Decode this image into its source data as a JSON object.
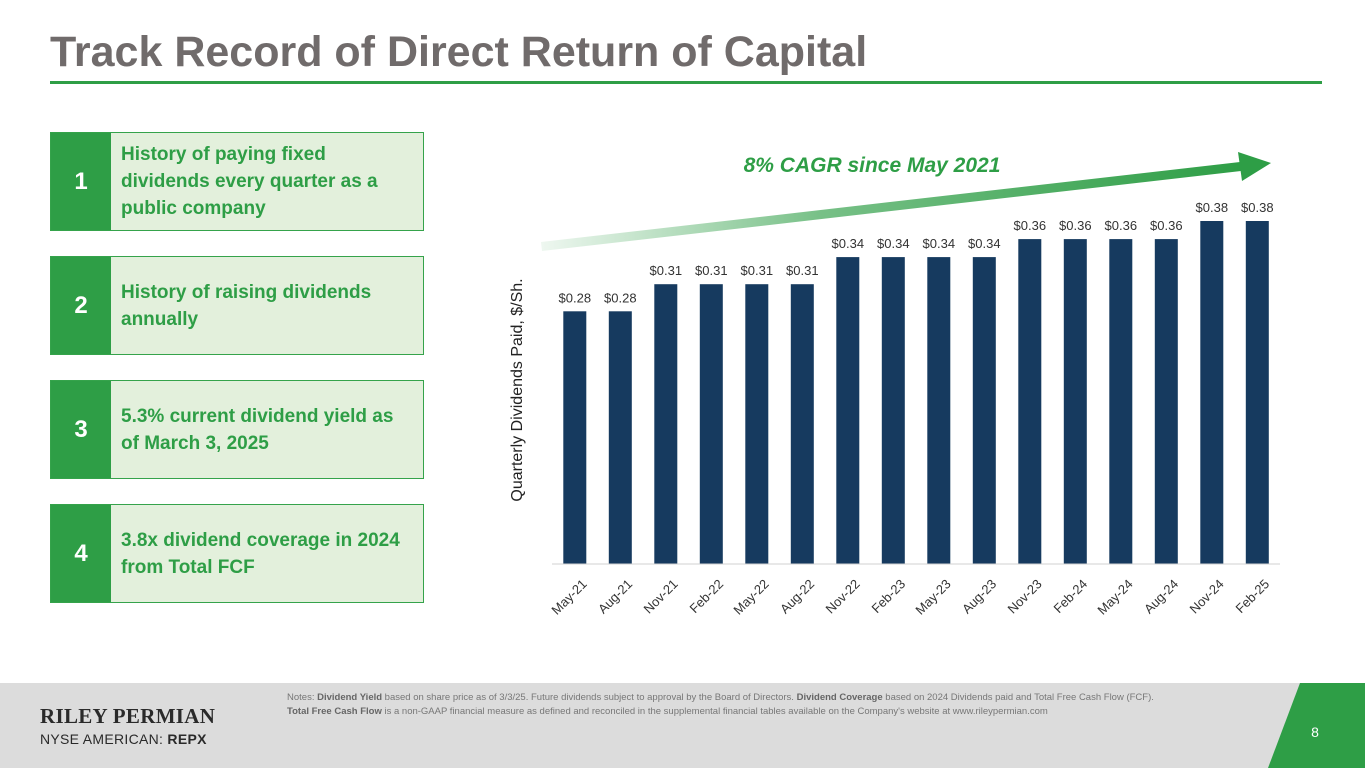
{
  "slide": {
    "title": "Track Record of Direct Return of Capital",
    "page_number": "8"
  },
  "cards": [
    {
      "number": "1",
      "text": "History of paying fixed dividends every quarter as a public company"
    },
    {
      "number": "2",
      "text": "History of raising dividends annually"
    },
    {
      "number": "3",
      "text": "5.3% current dividend yield as of March 3, 2025"
    },
    {
      "number": "4",
      "text": "3.8x dividend coverage in 2024 from Total FCF"
    }
  ],
  "chart_data": {
    "type": "bar",
    "categories": [
      "May-21",
      "Aug-21",
      "Nov-21",
      "Feb-22",
      "May-22",
      "Aug-22",
      "Nov-22",
      "Feb-23",
      "May-23",
      "Aug-23",
      "Nov-23",
      "Feb-24",
      "May-24",
      "Aug-24",
      "Nov-24",
      "Feb-25"
    ],
    "values": [
      0.28,
      0.28,
      0.31,
      0.31,
      0.31,
      0.31,
      0.34,
      0.34,
      0.34,
      0.34,
      0.36,
      0.36,
      0.36,
      0.36,
      0.38,
      0.38
    ],
    "data_labels": [
      "$0.28",
      "$0.28",
      "$0.31",
      "$0.31",
      "$0.31",
      "$0.31",
      "$0.34",
      "$0.34",
      "$0.34",
      "$0.34",
      "$0.36",
      "$0.36",
      "$0.36",
      "$0.36",
      "$0.38",
      "$0.38"
    ],
    "title": "",
    "xlabel": "",
    "ylabel": "Quarterly Dividends Paid, $/Sh.",
    "ylim": [
      0,
      0.38
    ],
    "grid": false,
    "annotation": "8% CAGR since May 2021",
    "bar_color": "#163a5f",
    "arrow_color": "#2e9e46"
  },
  "footer": {
    "company": "RILEY PERMIAN",
    "exchange_prefix": "NYSE AMERICAN: ",
    "ticker": "REPX",
    "notes": [
      {
        "text": "Notes: ",
        "bold": false
      },
      {
        "text": "Dividend Yield",
        "bold": true
      },
      {
        "text": " based on share price as of 3/3/25. Future dividends subject to approval by the Board of Directors. ",
        "bold": false
      },
      {
        "text": "Dividend Coverage",
        "bold": true
      },
      {
        "text": " based on 2024 Dividends paid and Total Free Cash Flow (FCF). ",
        "bold": false
      },
      {
        "text": "Total Free Cash Flow",
        "bold": true
      },
      {
        "text": " is a non-GAAP financial measure as defined and reconciled in the supplemental financial tables available on the Company's website at www.rileypermian.com",
        "bold": false
      }
    ]
  },
  "colors": {
    "accent_green": "#2e9e46",
    "card_fill": "#e3f0dc",
    "title_gray": "#706b6b",
    "footer_gray": "#dcdcdc"
  }
}
